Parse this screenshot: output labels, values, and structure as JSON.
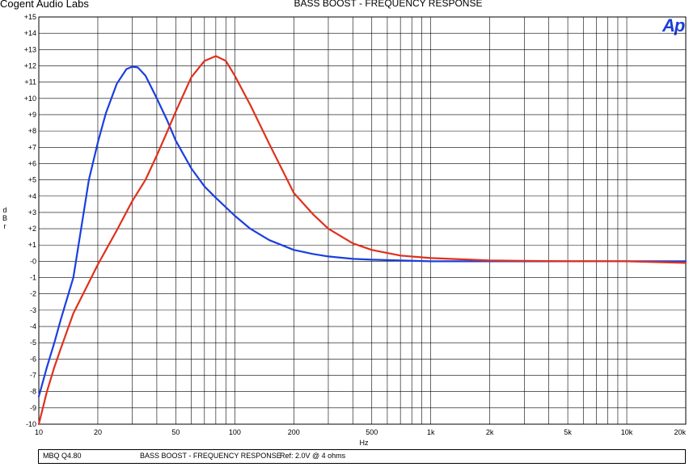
{
  "header": {
    "company": "Cogent Audio Labs",
    "title": "BASS BOOST  -  FREQUENCY RESPONSE",
    "logo_text": "Ap"
  },
  "footer": {
    "model": "MBQ Q4.80",
    "title": "BASS BOOST  -  FREQUENCY RESPONSE",
    "ref": "Ref: 2.0V @ 4 ohms"
  },
  "colors": {
    "series_blue": "#1a3fe0",
    "series_red": "#e0301c",
    "grid": "#000000",
    "logo": "#1a3fd6"
  },
  "chart_data": {
    "type": "line",
    "xscale": "log",
    "xlabel": "Hz",
    "ylabel": "dBr",
    "xlim": [
      10,
      20000
    ],
    "ylim": [
      -10,
      15
    ],
    "grid": true,
    "x_ticks": [
      {
        "v": 10,
        "label": "10"
      },
      {
        "v": 20,
        "label": "20"
      },
      {
        "v": 50,
        "label": "50"
      },
      {
        "v": 100,
        "label": "100"
      },
      {
        "v": 200,
        "label": "200"
      },
      {
        "v": 500,
        "label": "500"
      },
      {
        "v": 1000,
        "label": "1k"
      },
      {
        "v": 2000,
        "label": "2k"
      },
      {
        "v": 5000,
        "label": "5k"
      },
      {
        "v": 10000,
        "label": "10k"
      },
      {
        "v": 20000,
        "label": "20k"
      }
    ],
    "y_ticks": [
      {
        "v": 15,
        "label": "+15"
      },
      {
        "v": 14,
        "label": "+14"
      },
      {
        "v": 13,
        "label": "+13"
      },
      {
        "v": 12,
        "label": "+12"
      },
      {
        "v": 11,
        "label": "+11"
      },
      {
        "v": 10,
        "label": "+10"
      },
      {
        "v": 9,
        "label": "+9"
      },
      {
        "v": 8,
        "label": "+8"
      },
      {
        "v": 7,
        "label": "+7"
      },
      {
        "v": 6,
        "label": "+6"
      },
      {
        "v": 5,
        "label": "+5"
      },
      {
        "v": 4,
        "label": "+4"
      },
      {
        "v": 3,
        "label": "+3"
      },
      {
        "v": 2,
        "label": "+2"
      },
      {
        "v": 1,
        "label": "+1"
      },
      {
        "v": 0,
        "label": "-0"
      },
      {
        "v": -1,
        "label": "-1"
      },
      {
        "v": -2,
        "label": "-2"
      },
      {
        "v": -3,
        "label": "-3"
      },
      {
        "v": -4,
        "label": "-4"
      },
      {
        "v": -5,
        "label": "-5"
      },
      {
        "v": -6,
        "label": "-6"
      },
      {
        "v": -7,
        "label": "-7"
      },
      {
        "v": -8,
        "label": "-8"
      },
      {
        "v": -9,
        "label": "-9"
      },
      {
        "v": -10,
        "label": "-10"
      }
    ],
    "series": [
      {
        "color": "#1a3fe0",
        "x": [
          10,
          11,
          12,
          13,
          15,
          18,
          20,
          22,
          25,
          28,
          30,
          32,
          35,
          40,
          45,
          50,
          60,
          70,
          80,
          100,
          120,
          150,
          200,
          250,
          300,
          400,
          500,
          700,
          1000,
          2000,
          5000,
          10000,
          20000
        ],
        "y": [
          -8.3,
          -6.5,
          -5.0,
          -3.5,
          -1.0,
          5.0,
          7.3,
          9.1,
          10.9,
          11.8,
          11.95,
          11.9,
          11.4,
          10.0,
          8.7,
          7.4,
          5.7,
          4.6,
          3.9,
          2.8,
          2.0,
          1.3,
          0.7,
          0.45,
          0.3,
          0.15,
          0.1,
          0.05,
          0.0,
          0.0,
          0.0,
          0.0,
          0.0
        ]
      },
      {
        "color": "#e0301c",
        "x": [
          10,
          11,
          12,
          13,
          15,
          18,
          20,
          25,
          30,
          35,
          40,
          45,
          50,
          60,
          70,
          80,
          90,
          100,
          120,
          150,
          200,
          250,
          300,
          400,
          500,
          700,
          1000,
          2000,
          5000,
          10000,
          20000
        ],
        "y": [
          -10.0,
          -8.0,
          -6.5,
          -5.3,
          -3.2,
          -1.3,
          -0.2,
          1.9,
          3.7,
          5.0,
          6.5,
          7.9,
          9.2,
          11.3,
          12.3,
          12.6,
          12.3,
          11.4,
          9.6,
          7.2,
          4.2,
          2.9,
          2.0,
          1.1,
          0.7,
          0.35,
          0.2,
          0.05,
          0.0,
          0.0,
          -0.1
        ]
      }
    ]
  }
}
